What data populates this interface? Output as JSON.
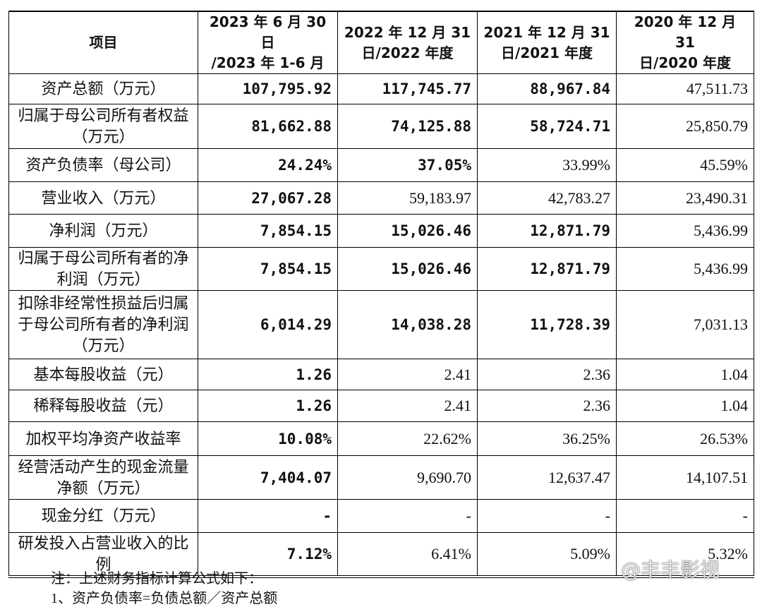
{
  "table": {
    "header": [
      "项目",
      "2023 年 6 月 30 日\n/2023 年 1-6 月",
      "2022 年 12 月 31\n日/2022 年度",
      "2021 年 12 月 31\n日/2021 年度",
      "2020 年 12 月 31\n日/2020 年度"
    ],
    "rows": [
      [
        "资产总额（万元）",
        "107,795.92",
        "117,745.77",
        "88,967.84",
        "47,511.73"
      ],
      [
        "归属于母公司所有者权益（万元）",
        "81,662.88",
        "74,125.88",
        "58,724.71",
        "25,850.79"
      ],
      [
        "资产负债率（母公司）",
        "24.24%",
        "37.05%",
        "33.99%",
        "45.59%"
      ],
      [
        "营业收入（万元）",
        "27,067.28",
        "59,183.97",
        "42,783.27",
        "23,490.31"
      ],
      [
        "净利润（万元）",
        "7,854.15",
        "15,026.46",
        "12,871.79",
        "5,436.99"
      ],
      [
        "归属于母公司所有者的净利润（万元）",
        "7,854.15",
        "15,026.46",
        "12,871.79",
        "5,436.99"
      ],
      [
        "扣除非经常性损益后归属于母公司所有者的净利润（万元）",
        "6,014.29",
        "14,038.28",
        "11,728.39",
        "7,031.13"
      ],
      [
        "基本每股收益（元）",
        "1.26",
        "2.41",
        "2.36",
        "1.04"
      ],
      [
        "稀释每股收益（元）",
        "1.26",
        "2.41",
        "2.36",
        "1.04"
      ],
      [
        "加权平均净资产收益率",
        "10.08%",
        "22.62%",
        "36.25%",
        "26.53%"
      ],
      [
        "经营活动产生的现金流量净额（万元）",
        "7,404.07",
        "9,690.70",
        "12,637.47",
        "14,107.51"
      ],
      [
        "现金分红（万元）",
        "-",
        "-",
        "-",
        "-"
      ],
      [
        "研发投入占营业收入的比例",
        "7.12%",
        "6.41%",
        "5.09%",
        "5.32%"
      ]
    ]
  },
  "notes": [
    "注：上述财务指标计算公式如下：",
    "1、资产负债率=负债总额／资产总额"
  ],
  "watermark": "@丰丰影视"
}
